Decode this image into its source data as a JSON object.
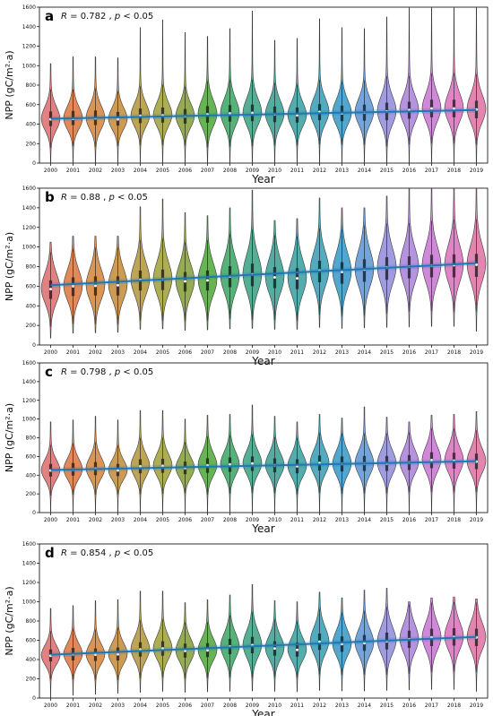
{
  "figure": {
    "years": [
      "2000",
      "2001",
      "2002",
      "2003",
      "2004",
      "2005",
      "2006",
      "2007",
      "2008",
      "2009",
      "2010",
      "2011",
      "2012",
      "2013",
      "2014",
      "2015",
      "2016",
      "2017",
      "2018",
      "2019"
    ],
    "palette": [
      "#e07a7a",
      "#df8350",
      "#d9904c",
      "#c9964c",
      "#b9a04c",
      "#a8a94c",
      "#8fa84c",
      "#5faf4c",
      "#4cae72",
      "#4cab8e",
      "#4ca99c",
      "#4ca8aa",
      "#4aa6bc",
      "#48a2cc",
      "#6e9fd8",
      "#9a98dd",
      "#b18ddd",
      "#cc83d6",
      "#de7dc3",
      "#e07eab"
    ],
    "trend_color": "#1f77b4"
  },
  "chart_data": [
    {
      "panel": "a",
      "type": "violin",
      "stat_r": "0.782",
      "stat_p": "0.05",
      "xlabel": "Year",
      "ylabel": "NPP (gC/m²·a)",
      "ylim": [
        0,
        1600
      ],
      "yticks": [
        0,
        200,
        400,
        600,
        800,
        1000,
        1200,
        1400,
        1600
      ],
      "median": [
        450,
        455,
        460,
        450,
        485,
        490,
        480,
        500,
        510,
        515,
        500,
        490,
        525,
        510,
        520,
        530,
        545,
        560,
        560,
        550
      ],
      "p25": [
        380,
        390,
        390,
        385,
        410,
        415,
        405,
        415,
        425,
        430,
        420,
        415,
        440,
        430,
        435,
        440,
        455,
        470,
        470,
        460
      ],
      "p75": [
        530,
        535,
        540,
        525,
        560,
        570,
        555,
        585,
        595,
        600,
        580,
        570,
        605,
        590,
        600,
        620,
        630,
        650,
        650,
        640
      ],
      "min": [
        0,
        0,
        0,
        0,
        0,
        0,
        0,
        0,
        0,
        0,
        0,
        0,
        0,
        0,
        0,
        0,
        0,
        0,
        0,
        0
      ],
      "max": [
        1020,
        1090,
        1090,
        1080,
        1390,
        1470,
        1340,
        1300,
        1380,
        1560,
        1260,
        1280,
        1480,
        1390,
        1380,
        1500,
        1600,
        1600,
        1600,
        1600
      ],
      "trend": [
        455,
        545
      ]
    },
    {
      "panel": "b",
      "type": "violin",
      "stat_r": "0.88",
      "stat_p": "0.05",
      "xlabel": "Year",
      "ylabel": "NPP (gC/m²·a)",
      "ylim": [
        0,
        1600
      ],
      "yticks": [
        0,
        200,
        400,
        600,
        800,
        1000,
        1200,
        1400,
        1600
      ],
      "median": [
        570,
        600,
        605,
        610,
        665,
        670,
        650,
        660,
        700,
        720,
        690,
        680,
        760,
        745,
        770,
        790,
        800,
        810,
        815,
        820
      ],
      "p25": [
        470,
        500,
        505,
        505,
        555,
        560,
        545,
        555,
        590,
        600,
        580,
        570,
        640,
        625,
        645,
        665,
        680,
        690,
        690,
        695
      ],
      "p75": [
        660,
        690,
        700,
        700,
        760,
        770,
        745,
        760,
        805,
        830,
        795,
        785,
        860,
        845,
        875,
        895,
        905,
        920,
        925,
        930
      ],
      "min": [
        70,
        120,
        125,
        130,
        160,
        165,
        150,
        155,
        165,
        170,
        160,
        160,
        180,
        170,
        175,
        180,
        185,
        190,
        190,
        140
      ],
      "max": [
        1050,
        1110,
        1110,
        1110,
        1410,
        1490,
        1350,
        1320,
        1400,
        1580,
        1270,
        1290,
        1500,
        1400,
        1400,
        1520,
        1600,
        1600,
        1600,
        1600
      ],
      "trend": [
        610,
        835
      ]
    },
    {
      "panel": "c",
      "type": "violin",
      "stat_r": "0.798",
      "stat_p": "0.05",
      "xlabel": "Year",
      "ylabel": "NPP (gC/m²·a)",
      "ylim": [
        0,
        1600
      ],
      "yticks": [
        0,
        200,
        400,
        600,
        800,
        1000,
        1200,
        1400,
        1600
      ],
      "median": [
        450,
        460,
        470,
        450,
        495,
        500,
        475,
        505,
        515,
        525,
        505,
        495,
        530,
        520,
        525,
        525,
        535,
        560,
        555,
        545
      ],
      "p25": [
        385,
        395,
        400,
        390,
        420,
        425,
        410,
        425,
        435,
        445,
        430,
        420,
        450,
        440,
        445,
        445,
        455,
        475,
        470,
        465
      ],
      "p75": [
        520,
        530,
        540,
        520,
        570,
        575,
        545,
        580,
        590,
        600,
        580,
        570,
        610,
        600,
        605,
        605,
        615,
        645,
        640,
        630
      ],
      "min": [
        0,
        0,
        0,
        0,
        0,
        0,
        0,
        0,
        0,
        0,
        0,
        0,
        0,
        0,
        0,
        0,
        0,
        0,
        0,
        0
      ],
      "max": [
        970,
        990,
        1030,
        990,
        1090,
        1090,
        1000,
        1040,
        1050,
        1150,
        1030,
        970,
        1050,
        1010,
        1130,
        1020,
        970,
        1040,
        1050,
        1080
      ],
      "trend": [
        455,
        550
      ]
    },
    {
      "panel": "d",
      "type": "violin",
      "stat_r": "0.854",
      "stat_p": "0.05",
      "xlabel": "Year",
      "ylabel": "NPP (gC/m²·a)",
      "ylim": [
        0,
        1600
      ],
      "yticks": [
        0,
        200,
        400,
        600,
        800,
        1000,
        1200,
        1400,
        1600
      ],
      "median": [
        440,
        455,
        450,
        455,
        505,
        515,
        490,
        495,
        535,
        550,
        515,
        500,
        585,
        560,
        570,
        590,
        610,
        630,
        635,
        630
      ],
      "p25": [
        380,
        390,
        385,
        390,
        430,
        440,
        420,
        425,
        455,
        465,
        440,
        430,
        500,
        480,
        490,
        505,
        520,
        540,
        545,
        540
      ],
      "p75": [
        505,
        520,
        515,
        525,
        580,
        590,
        565,
        570,
        615,
        635,
        590,
        575,
        670,
        640,
        655,
        680,
        700,
        720,
        725,
        720
      ],
      "min": [
        0,
        30,
        40,
        50,
        60,
        70,
        60,
        65,
        70,
        75,
        70,
        65,
        80,
        75,
        75,
        80,
        85,
        90,
        90,
        70
      ],
      "max": [
        930,
        960,
        1010,
        1020,
        1110,
        1110,
        990,
        1020,
        1070,
        1180,
        1010,
        1000,
        1100,
        1040,
        1120,
        1140,
        1000,
        1040,
        1050,
        1030
      ],
      "trend": [
        450,
        635
      ]
    }
  ]
}
